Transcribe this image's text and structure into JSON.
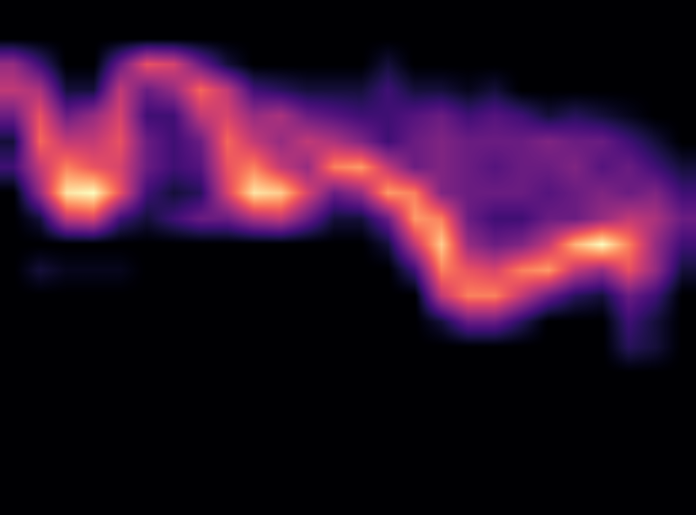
{
  "chart_data": {
    "type": "heatmap",
    "color": "magma",
    "tick_labels": false,
    "cells": [
      [
        0,
        0,
        0,
        0,
        0,
        0,
        0,
        0,
        0,
        0,
        0,
        0,
        0,
        0,
        0,
        0,
        0,
        0,
        0,
        0,
        0,
        0,
        0,
        0,
        0,
        0
      ],
      [
        0,
        0,
        0,
        0,
        0,
        0,
        0,
        0,
        0,
        0,
        0,
        0,
        0,
        0,
        0,
        0,
        0,
        0,
        0,
        0,
        0,
        0,
        0,
        0,
        0,
        0
      ],
      [
        0.4,
        0.2,
        0,
        0,
        0.3,
        0.6,
        0.55,
        0.3,
        0.1,
        0,
        0,
        0,
        0,
        0,
        0.1,
        0,
        0,
        0,
        0,
        0,
        0,
        0,
        0,
        0,
        0,
        0
      ],
      [
        0.5,
        0.45,
        0.1,
        0.1,
        0.5,
        0.3,
        0.4,
        0.65,
        0.5,
        0.2,
        0.15,
        0.1,
        0.1,
        0.1,
        0.2,
        0.1,
        0.1,
        0.05,
        0.1,
        0,
        0,
        0,
        0,
        0,
        0,
        0
      ],
      [
        0.3,
        0.6,
        0.3,
        0.4,
        0.55,
        0.2,
        0.2,
        0.5,
        0.55,
        0.4,
        0.45,
        0.3,
        0.25,
        0.2,
        0.2,
        0.25,
        0.3,
        0.2,
        0.25,
        0.2,
        0.1,
        0.15,
        0.1,
        0.05,
        0,
        0
      ],
      [
        0.1,
        0.65,
        0.5,
        0.5,
        0.6,
        0.3,
        0.2,
        0.3,
        0.65,
        0.5,
        0.4,
        0.5,
        0.45,
        0.35,
        0.2,
        0.3,
        0.35,
        0.3,
        0.3,
        0.3,
        0.35,
        0.3,
        0.3,
        0.2,
        0.1,
        0
      ],
      [
        0.2,
        0.5,
        0.7,
        0.6,
        0.55,
        0.3,
        0.2,
        0.25,
        0.6,
        0.7,
        0.5,
        0.4,
        0.7,
        0.75,
        0.5,
        0.3,
        0.35,
        0.3,
        0.25,
        0.3,
        0.3,
        0.35,
        0.25,
        0.3,
        0.2,
        0.1
      ],
      [
        0,
        0.4,
        0.9,
        0.95,
        0.6,
        0.2,
        0.1,
        0.15,
        0.55,
        0.9,
        0.85,
        0.55,
        0.3,
        0.4,
        0.75,
        0.7,
        0.35,
        0.3,
        0.3,
        0.3,
        0.25,
        0.3,
        0.35,
        0.3,
        0.35,
        0.2
      ],
      [
        0,
        0.1,
        0.5,
        0.55,
        0.2,
        0.1,
        0.2,
        0.3,
        0.3,
        0.45,
        0.5,
        0.3,
        0.1,
        0.1,
        0.3,
        0.75,
        0.7,
        0.3,
        0.2,
        0.2,
        0.3,
        0.3,
        0.4,
        0.5,
        0.45,
        0.3
      ],
      [
        0,
        0,
        0,
        0,
        0,
        0,
        0,
        0,
        0,
        0,
        0,
        0,
        0,
        0,
        0.1,
        0.5,
        0.85,
        0.4,
        0.3,
        0.35,
        0.5,
        0.8,
        0.95,
        0.7,
        0.4,
        0.2
      ],
      [
        0,
        0.1,
        0.05,
        0.05,
        0.05,
        0,
        0,
        0,
        0,
        0,
        0,
        0,
        0,
        0,
        0,
        0.2,
        0.7,
        0.6,
        0.55,
        0.7,
        0.75,
        0.5,
        0.4,
        0.6,
        0.4,
        0.1
      ],
      [
        0,
        0,
        0,
        0,
        0,
        0,
        0,
        0,
        0,
        0,
        0,
        0,
        0,
        0,
        0,
        0,
        0.5,
        0.7,
        0.7,
        0.5,
        0.3,
        0.15,
        0.1,
        0.3,
        0.2,
        0
      ],
      [
        0,
        0,
        0,
        0,
        0,
        0,
        0,
        0,
        0,
        0,
        0,
        0,
        0,
        0,
        0,
        0,
        0.1,
        0.3,
        0.3,
        0.15,
        0,
        0,
        0,
        0.2,
        0.1,
        0
      ],
      [
        0,
        0,
        0,
        0,
        0,
        0,
        0,
        0,
        0,
        0,
        0,
        0,
        0,
        0,
        0,
        0,
        0,
        0,
        0,
        0,
        0,
        0,
        0,
        0.15,
        0.1,
        0
      ],
      [
        0,
        0,
        0,
        0,
        0,
        0,
        0,
        0,
        0,
        0,
        0,
        0,
        0,
        0,
        0,
        0,
        0,
        0,
        0,
        0,
        0,
        0,
        0,
        0,
        0,
        0
      ],
      [
        0,
        0,
        0,
        0,
        0,
        0,
        0,
        0,
        0,
        0,
        0,
        0,
        0,
        0,
        0,
        0,
        0,
        0,
        0,
        0,
        0,
        0,
        0,
        0,
        0,
        0
      ],
      [
        0,
        0,
        0,
        0,
        0,
        0,
        0,
        0,
        0,
        0,
        0,
        0,
        0,
        0,
        0,
        0,
        0,
        0,
        0,
        0,
        0,
        0,
        0,
        0,
        0,
        0
      ],
      [
        0,
        0,
        0,
        0,
        0,
        0,
        0,
        0,
        0,
        0,
        0,
        0,
        0,
        0,
        0,
        0,
        0,
        0,
        0,
        0,
        0,
        0,
        0,
        0,
        0,
        0
      ],
      [
        0,
        0,
        0,
        0,
        0,
        0,
        0,
        0,
        0,
        0,
        0,
        0,
        0,
        0,
        0,
        0,
        0,
        0,
        0,
        0,
        0,
        0,
        0,
        0,
        0,
        0
      ],
      [
        0,
        0,
        0,
        0,
        0,
        0,
        0,
        0,
        0,
        0,
        0,
        0,
        0,
        0,
        0,
        0,
        0,
        0,
        0,
        0,
        0,
        0,
        0,
        0,
        0,
        0
      ]
    ]
  }
}
